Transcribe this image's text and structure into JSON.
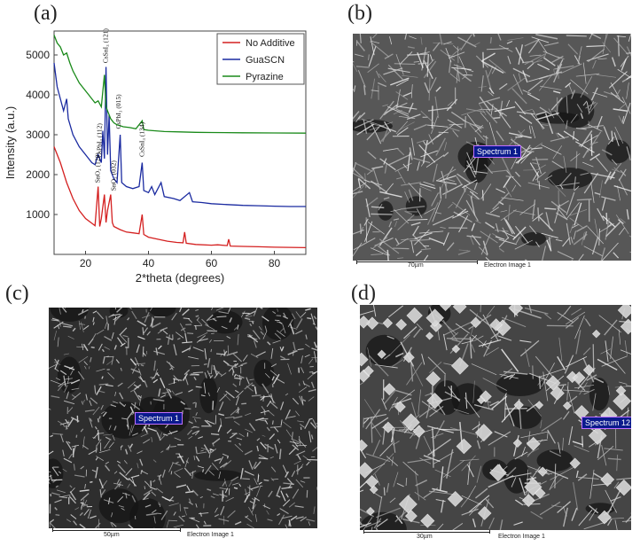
{
  "panels": {
    "a": {
      "label": "(a)"
    },
    "b": {
      "label": "(b)",
      "spectrum": "Spectrum 1",
      "scale": "70µm",
      "caption": "Electron Image 1"
    },
    "c": {
      "label": "(c)",
      "spectrum": "Spectrum 1",
      "scale": "50µm",
      "caption": "Electron Image 1"
    },
    "d": {
      "label": "(d)",
      "spectrum": "Spectrum 12",
      "scale": "30µm",
      "caption": "Electron Image 1"
    }
  },
  "chart_data": {
    "type": "line",
    "xlabel": "2*theta (degrees)",
    "ylabel": "Intensity (a.u.)",
    "xlim": [
      10,
      90
    ],
    "ylim": [
      0,
      5600
    ],
    "xticks": [
      20,
      40,
      60,
      80
    ],
    "yticks": [
      1000,
      2000,
      3000,
      4000,
      5000
    ],
    "legend_position": "top-right",
    "series": [
      {
        "name": "No Additive",
        "color": "#d42020",
        "points": [
          [
            10,
            2700
          ],
          [
            12,
            2300
          ],
          [
            14,
            1800
          ],
          [
            16,
            1400
          ],
          [
            18,
            1100
          ],
          [
            20,
            900
          ],
          [
            22,
            780
          ],
          [
            23,
            720
          ],
          [
            24,
            1700
          ],
          [
            24.5,
            700
          ],
          [
            25,
            900
          ],
          [
            26,
            1500
          ],
          [
            26.5,
            800
          ],
          [
            27,
            1100
          ],
          [
            28,
            1500
          ],
          [
            28.5,
            800
          ],
          [
            29,
            700
          ],
          [
            31,
            620
          ],
          [
            33,
            560
          ],
          [
            35,
            540
          ],
          [
            37,
            520
          ],
          [
            38,
            1000
          ],
          [
            38.5,
            500
          ],
          [
            40,
            430
          ],
          [
            43,
            380
          ],
          [
            46,
            330
          ],
          [
            49,
            300
          ],
          [
            51,
            290
          ],
          [
            51.5,
            560
          ],
          [
            52,
            280
          ],
          [
            55,
            250
          ],
          [
            60,
            230
          ],
          [
            62,
            240
          ],
          [
            65,
            220
          ],
          [
            65.5,
            380
          ],
          [
            66,
            210
          ],
          [
            70,
            200
          ],
          [
            75,
            190
          ],
          [
            80,
            180
          ],
          [
            85,
            175
          ],
          [
            90,
            170
          ]
        ]
      },
      {
        "name": "GuaSCN",
        "color": "#1a2aa0",
        "points": [
          [
            10,
            4800
          ],
          [
            11,
            4200
          ],
          [
            12,
            3900
          ],
          [
            13,
            3600
          ],
          [
            14,
            3900
          ],
          [
            14.5,
            3400
          ],
          [
            16,
            3000
          ],
          [
            18,
            2700
          ],
          [
            20,
            2500
          ],
          [
            22,
            2300
          ],
          [
            23,
            2250
          ],
          [
            24,
            2500
          ],
          [
            25,
            2300
          ],
          [
            25.5,
            3100
          ],
          [
            26,
            2400
          ],
          [
            26.5,
            4700
          ],
          [
            27,
            2500
          ],
          [
            27.5,
            3500
          ],
          [
            28,
            2100
          ],
          [
            29,
            1900
          ],
          [
            30,
            1800
          ],
          [
            31,
            3000
          ],
          [
            31.5,
            1800
          ],
          [
            33,
            1700
          ],
          [
            35,
            1650
          ],
          [
            37,
            1700
          ],
          [
            38,
            2300
          ],
          [
            38.5,
            1600
          ],
          [
            40,
            1550
          ],
          [
            41,
            1700
          ],
          [
            42,
            1500
          ],
          [
            44,
            1800
          ],
          [
            45,
            1450
          ],
          [
            48,
            1400
          ],
          [
            50,
            1350
          ],
          [
            53,
            1550
          ],
          [
            54,
            1320
          ],
          [
            57,
            1300
          ],
          [
            60,
            1270
          ],
          [
            65,
            1250
          ],
          [
            70,
            1230
          ],
          [
            75,
            1220
          ],
          [
            80,
            1210
          ],
          [
            85,
            1200
          ],
          [
            90,
            1200
          ]
        ]
      },
      {
        "name": "Pyrazine",
        "color": "#1a8a1a",
        "points": [
          [
            10,
            5500
          ],
          [
            11,
            5300
          ],
          [
            12,
            5200
          ],
          [
            13,
            5000
          ],
          [
            14,
            5050
          ],
          [
            15,
            4800
          ],
          [
            16,
            4600
          ],
          [
            18,
            4300
          ],
          [
            20,
            4100
          ],
          [
            21,
            4000
          ],
          [
            22,
            3900
          ],
          [
            23,
            3800
          ],
          [
            24,
            3850
          ],
          [
            25,
            3700
          ],
          [
            26,
            4500
          ],
          [
            26.5,
            3700
          ],
          [
            27,
            3600
          ],
          [
            28,
            3400
          ],
          [
            29,
            3300
          ],
          [
            30,
            3250
          ],
          [
            32,
            3200
          ],
          [
            34,
            3180
          ],
          [
            36,
            3150
          ],
          [
            38,
            3350
          ],
          [
            38.5,
            3130
          ],
          [
            40,
            3110
          ],
          [
            45,
            3080
          ],
          [
            50,
            3070
          ],
          [
            55,
            3060
          ],
          [
            60,
            3055
          ],
          [
            70,
            3050
          ],
          [
            80,
            3045
          ],
          [
            90,
            3040
          ]
        ]
      }
    ],
    "annotations": [
      "CsSnI₃ (121)",
      "CsPbI₃ (112)",
      "CsPbI₃ (015)",
      "CsSnI₃ (134)",
      "SnO₂ (120)",
      "SnO₂ (032)"
    ]
  }
}
